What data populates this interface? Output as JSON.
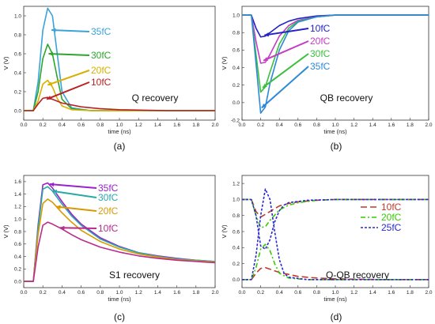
{
  "chart_data": [
    {
      "type": "line",
      "panel": "(a)",
      "annotation": "Q recovery",
      "xlabel": "time (ns)",
      "ylabel": "V (V)",
      "xlim": [
        0,
        2.0
      ],
      "ylim": [
        -0.1,
        1.1
      ],
      "xticks": [
        "0.0",
        "0.2",
        "0.4",
        "0.6",
        "0.8",
        "1.0",
        "1.2",
        "1.4",
        "1.6",
        "1.8",
        "2.0"
      ],
      "yticks": [
        "0.0",
        "0.2",
        "0.4",
        "0.6",
        "0.8",
        "1.0"
      ],
      "series": [
        {
          "name": "35fC",
          "color": "#3aa3d8",
          "x": [
            0,
            0.1,
            0.15,
            0.2,
            0.25,
            0.3,
            0.35,
            0.4,
            0.5,
            0.7,
            1.0,
            1.5,
            2.0
          ],
          "y": [
            0,
            0,
            0.3,
            0.85,
            1.08,
            1.0,
            0.6,
            0.2,
            0.03,
            0,
            0,
            0,
            0
          ]
        },
        {
          "name": "30fC",
          "color": "#2ea52e",
          "x": [
            0,
            0.1,
            0.15,
            0.2,
            0.25,
            0.3,
            0.35,
            0.4,
            0.5,
            0.7,
            1.0,
            1.5,
            2.0
          ],
          "y": [
            0,
            0,
            0.2,
            0.55,
            0.7,
            0.6,
            0.35,
            0.12,
            0.02,
            0,
            0,
            0,
            0
          ]
        },
        {
          "name": "20fC",
          "color": "#d8b000",
          "x": [
            0,
            0.1,
            0.15,
            0.2,
            0.25,
            0.3,
            0.35,
            0.4,
            0.5,
            0.7,
            1.0,
            1.5,
            2.0
          ],
          "y": [
            0,
            0,
            0.1,
            0.28,
            0.32,
            0.25,
            0.13,
            0.05,
            0.01,
            0,
            0,
            0,
            0
          ]
        },
        {
          "name": "10fC",
          "color": "#b82222",
          "x": [
            0,
            0.1,
            0.15,
            0.2,
            0.25,
            0.3,
            0.4,
            0.6,
            0.8,
            1.0,
            1.5,
            2.0
          ],
          "y": [
            0,
            0,
            0.07,
            0.13,
            0.14,
            0.12,
            0.08,
            0.04,
            0.02,
            0.01,
            0,
            0
          ]
        }
      ]
    },
    {
      "type": "line",
      "panel": "(b)",
      "annotation": "QB recovery",
      "xlabel": "time (ns)",
      "ylabel": "V (V)",
      "xlim": [
        0,
        2.0
      ],
      "ylim": [
        -0.2,
        1.1
      ],
      "xticks": [
        "0.0",
        "0.2",
        "0.4",
        "0.6",
        "0.8",
        "1.0",
        "1.2",
        "1.4",
        "1.6",
        "1.8",
        "2.0"
      ],
      "yticks": [
        "-0.2",
        "0.0",
        "0.2",
        "0.4",
        "0.6",
        "0.8",
        "1.0"
      ],
      "series": [
        {
          "name": "10fC",
          "color": "#2222c8",
          "x": [
            0,
            0.1,
            0.15,
            0.2,
            0.25,
            0.3,
            0.4,
            0.5,
            0.6,
            0.8,
            1.0,
            1.5,
            2.0
          ],
          "y": [
            1,
            1,
            0.85,
            0.75,
            0.76,
            0.8,
            0.88,
            0.93,
            0.96,
            0.99,
            1,
            1,
            1
          ]
        },
        {
          "name": "20fC",
          "color": "#c43cc4",
          "x": [
            0,
            0.1,
            0.15,
            0.2,
            0.25,
            0.3,
            0.4,
            0.5,
            0.6,
            0.8,
            1.0,
            1.5,
            2.0
          ],
          "y": [
            1,
            1,
            0.7,
            0.45,
            0.46,
            0.55,
            0.76,
            0.88,
            0.94,
            0.98,
            1,
            1,
            1
          ]
        },
        {
          "name": "30fC",
          "color": "#3cbf3c",
          "x": [
            0,
            0.1,
            0.15,
            0.2,
            0.25,
            0.3,
            0.4,
            0.5,
            0.6,
            0.8,
            1.0,
            1.5,
            2.0
          ],
          "y": [
            1,
            1,
            0.55,
            0.12,
            0.18,
            0.35,
            0.67,
            0.85,
            0.93,
            0.98,
            1,
            1,
            1
          ]
        },
        {
          "name": "35fC",
          "color": "#2e88d8",
          "x": [
            0,
            0.1,
            0.15,
            0.2,
            0.25,
            0.3,
            0.4,
            0.5,
            0.6,
            0.8,
            1.0,
            1.5,
            2.0
          ],
          "y": [
            1,
            1,
            0.45,
            -0.12,
            -0.05,
            0.22,
            0.6,
            0.82,
            0.92,
            0.98,
            1,
            1,
            1
          ]
        }
      ]
    },
    {
      "type": "line",
      "panel": "(c)",
      "annotation": "S1 recovery",
      "xlabel": "time (ns)",
      "ylabel": "V (V)",
      "xlim": [
        0,
        2.0
      ],
      "ylim": [
        -0.1,
        1.7
      ],
      "xticks": [
        "0.0",
        "0.2",
        "0.4",
        "0.6",
        "0.8",
        "1.0",
        "1.2",
        "1.4",
        "1.6",
        "1.8",
        "2.0"
      ],
      "yticks": [
        "0.0",
        "0.2",
        "0.4",
        "0.6",
        "0.8",
        "1.0",
        "1.2",
        "1.4",
        "1.6"
      ],
      "series": [
        {
          "name": "35fC",
          "color": "#9a22c8",
          "x": [
            0,
            0.1,
            0.15,
            0.2,
            0.25,
            0.3,
            0.4,
            0.5,
            0.6,
            0.8,
            1.0,
            1.2,
            1.4,
            1.6,
            1.8,
            2.0
          ],
          "y": [
            0,
            0,
            0.9,
            1.55,
            1.58,
            1.5,
            1.28,
            1.08,
            0.92,
            0.7,
            0.56,
            0.46,
            0.41,
            0.37,
            0.34,
            0.32
          ]
        },
        {
          "name": "30fC",
          "color": "#2aa8a8",
          "x": [
            0,
            0.1,
            0.15,
            0.2,
            0.25,
            0.3,
            0.4,
            0.5,
            0.6,
            0.8,
            1.0,
            1.2,
            1.4,
            1.6,
            1.8,
            2.0
          ],
          "y": [
            0,
            0,
            0.85,
            1.48,
            1.52,
            1.45,
            1.24,
            1.05,
            0.9,
            0.68,
            0.55,
            0.46,
            0.4,
            0.36,
            0.34,
            0.32
          ]
        },
        {
          "name": "20fC",
          "color": "#d89a00",
          "x": [
            0,
            0.1,
            0.15,
            0.2,
            0.25,
            0.3,
            0.4,
            0.5,
            0.6,
            0.8,
            1.0,
            1.2,
            1.4,
            1.6,
            1.8,
            2.0
          ],
          "y": [
            0,
            0,
            0.75,
            1.25,
            1.32,
            1.27,
            1.1,
            0.95,
            0.82,
            0.64,
            0.52,
            0.44,
            0.39,
            0.35,
            0.33,
            0.31
          ]
        },
        {
          "name": "10fC",
          "color": "#b82c8c",
          "x": [
            0,
            0.1,
            0.15,
            0.2,
            0.25,
            0.3,
            0.4,
            0.5,
            0.6,
            0.8,
            1.0,
            1.2,
            1.4,
            1.6,
            1.8,
            2.0
          ],
          "y": [
            0,
            0,
            0.55,
            0.9,
            0.95,
            0.92,
            0.84,
            0.75,
            0.67,
            0.55,
            0.47,
            0.41,
            0.37,
            0.34,
            0.32,
            0.3
          ]
        }
      ]
    },
    {
      "type": "line",
      "panel": "(d)",
      "annotation": "Q-QB recovery",
      "xlabel": "time (ns)",
      "ylabel": "V (V)",
      "xlim": [
        0,
        2.0
      ],
      "ylim": [
        -0.1,
        1.3
      ],
      "xticks": [
        "0.0",
        "0.2",
        "0.4",
        "0.6",
        "0.8",
        "1.0",
        "1.2",
        "1.4",
        "1.6",
        "1.8",
        "2.0"
      ],
      "yticks": [
        "0.0",
        "0.2",
        "0.4",
        "0.6",
        "0.8",
        "1.0",
        "1.2"
      ],
      "legend": {
        "placement": "right"
      },
      "series": [
        {
          "name": "10fC",
          "color": "#c0392b",
          "dash": "8,4",
          "x": [
            0,
            0.1,
            0.15,
            0.2,
            0.25,
            0.3,
            0.4,
            0.6,
            0.8,
            1.0,
            1.5,
            2.0
          ],
          "y": [
            0,
            0,
            0.08,
            0.14,
            0.15,
            0.13,
            0.09,
            0.04,
            0.02,
            0.01,
            0,
            0
          ]
        },
        {
          "name": "10fC",
          "color": "#c0392b",
          "dash": "8,4",
          "x": [
            0,
            0.1,
            0.15,
            0.2,
            0.3,
            0.4,
            0.5,
            0.6,
            0.8,
            1.0,
            1.5,
            2.0
          ],
          "y": [
            1,
            1,
            0.85,
            0.78,
            0.85,
            0.92,
            0.95,
            0.97,
            0.99,
            1,
            1,
            1
          ]
        },
        {
          "name": "20fC",
          "color": "#33cc00",
          "dash": "6,3,2,3",
          "x": [
            0,
            0.1,
            0.15,
            0.2,
            0.25,
            0.3,
            0.35,
            0.4,
            0.5,
            0.7,
            1.0,
            1.5,
            2.0
          ],
          "y": [
            0,
            0,
            0.15,
            0.38,
            0.44,
            0.36,
            0.2,
            0.08,
            0.02,
            0,
            0,
            0,
            0
          ]
        },
        {
          "name": "20fC",
          "color": "#33cc00",
          "dash": "6,3,2,3",
          "x": [
            0,
            0.1,
            0.15,
            0.2,
            0.25,
            0.3,
            0.4,
            0.5,
            0.6,
            0.8,
            1.0,
            1.5,
            2.0
          ],
          "y": [
            1,
            1,
            0.8,
            0.65,
            0.66,
            0.74,
            0.87,
            0.93,
            0.96,
            0.99,
            1,
            1,
            1
          ]
        },
        {
          "name": "25fC",
          "color": "#2a2acc",
          "dash": "3,2",
          "x": [
            0,
            0.1,
            0.15,
            0.2,
            0.25,
            0.3,
            0.35,
            0.4,
            0.45,
            0.5,
            0.7,
            1.0,
            1.5,
            2.0
          ],
          "y": [
            0,
            0,
            0.3,
            0.8,
            1.13,
            1.0,
            0.6,
            0.25,
            0.08,
            0.03,
            0,
            0,
            0,
            0
          ]
        },
        {
          "name": "25fC",
          "color": "#2a2acc",
          "dash": "3,2",
          "x": [
            0,
            0.1,
            0.15,
            0.2,
            0.25,
            0.3,
            0.35,
            0.4,
            0.45,
            0.5,
            0.7,
            1.0,
            1.5,
            2.0
          ],
          "y": [
            1,
            1,
            0.8,
            0.42,
            0.38,
            0.5,
            0.72,
            0.86,
            0.93,
            0.96,
            0.99,
            1,
            1,
            1
          ]
        }
      ]
    }
  ]
}
